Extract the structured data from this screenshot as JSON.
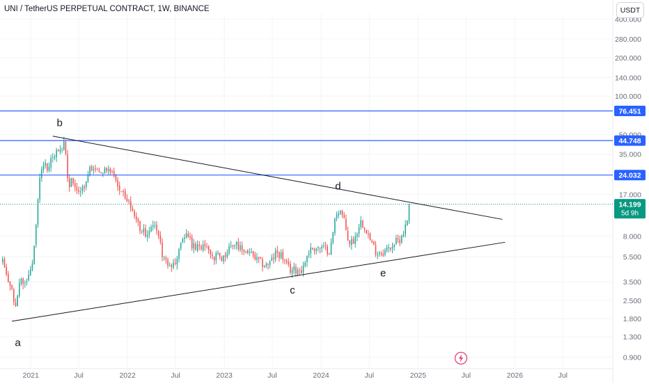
{
  "header": {
    "symbol_title": "UNI / TetherUS PERPETUAL CONTRACT, 1W, BINANCE",
    "currency_label": "USDT"
  },
  "colors": {
    "up": "#26a69a",
    "down": "#ef5350",
    "level_line": "#2962ff",
    "level_label_bg": "#2962ff",
    "price_label_bg": "#089981",
    "trendline": "#131722",
    "axis_text": "#6a6d78"
  },
  "icons": {
    "alert": "lightning-bolt-icon"
  },
  "chart_data": {
    "type": "candlestick",
    "y_scale": "log",
    "ylim": [
      0.75,
      440
    ],
    "y_ticks": [
      "0.900",
      "1.300",
      "1.800",
      "2.500",
      "3.500",
      "5.500",
      "8.000",
      "17.000",
      "35.000",
      "50.000",
      "100.000",
      "140.000",
      "200.000",
      "280.000",
      "400.000"
    ],
    "x_range": [
      "2020-09-07",
      "2026-12-31"
    ],
    "x_ticks": [
      {
        "date": "2021-01-01",
        "label": "2021"
      },
      {
        "date": "2021-07-01",
        "label": "Jul"
      },
      {
        "date": "2022-01-01",
        "label": "2022"
      },
      {
        "date": "2022-07-01",
        "label": "Jul"
      },
      {
        "date": "2023-01-01",
        "label": "2023"
      },
      {
        "date": "2023-07-01",
        "label": "Jul"
      },
      {
        "date": "2024-01-01",
        "label": "2024"
      },
      {
        "date": "2024-07-01",
        "label": "Jul"
      },
      {
        "date": "2025-01-01",
        "label": "2025"
      },
      {
        "date": "2025-07-01",
        "label": "Jul"
      },
      {
        "date": "2026-01-01",
        "label": "2026"
      },
      {
        "date": "2026-07-01",
        "label": "Jul"
      }
    ],
    "price_path": [
      [
        "2020-09-17",
        5.0
      ],
      [
        "2020-10-05",
        3.6
      ],
      [
        "2020-10-19",
        3.2
      ],
      [
        "2020-11-02",
        2.1
      ],
      [
        "2020-11-09",
        2.4
      ],
      [
        "2020-11-23",
        3.6
      ],
      [
        "2020-12-14",
        3.4
      ],
      [
        "2021-01-04",
        4.5
      ],
      [
        "2021-01-18",
        8.5
      ],
      [
        "2021-02-01",
        20
      ],
      [
        "2021-02-15",
        30
      ],
      [
        "2021-03-01",
        27
      ],
      [
        "2021-03-22",
        33
      ],
      [
        "2021-04-12",
        36
      ],
      [
        "2021-05-03",
        42
      ],
      [
        "2021-05-10",
        40
      ],
      [
        "2021-05-24",
        20
      ],
      [
        "2021-06-07",
        22
      ],
      [
        "2021-06-21",
        17
      ],
      [
        "2021-07-05",
        18
      ],
      [
        "2021-07-19",
        19
      ],
      [
        "2021-08-02",
        24
      ],
      [
        "2021-08-16",
        28
      ],
      [
        "2021-09-06",
        28
      ],
      [
        "2021-09-20",
        24
      ],
      [
        "2021-10-04",
        26
      ],
      [
        "2021-10-25",
        26
      ],
      [
        "2021-11-15",
        24
      ],
      [
        "2021-12-06",
        17
      ],
      [
        "2021-12-27",
        16
      ],
      [
        "2022-01-10",
        14
      ],
      [
        "2022-01-31",
        11
      ],
      [
        "2022-02-21",
        9
      ],
      [
        "2022-03-14",
        8.5
      ],
      [
        "2022-04-04",
        10.5
      ],
      [
        "2022-04-25",
        8.0
      ],
      [
        "2022-05-16",
        5.5
      ],
      [
        "2022-06-13",
        4.6
      ],
      [
        "2022-07-04",
        5.0
      ],
      [
        "2022-07-25",
        8.0
      ],
      [
        "2022-08-15",
        8.2
      ],
      [
        "2022-09-05",
        6.5
      ],
      [
        "2022-10-03",
        6.6
      ],
      [
        "2022-10-31",
        7.0
      ],
      [
        "2022-11-14",
        5.6
      ],
      [
        "2022-12-05",
        5.6
      ],
      [
        "2022-12-26",
        5.3
      ],
      [
        "2023-01-16",
        6.6
      ],
      [
        "2023-02-06",
        7.0
      ],
      [
        "2023-03-06",
        6.3
      ],
      [
        "2023-04-03",
        6.0
      ],
      [
        "2023-05-01",
        5.2
      ],
      [
        "2023-06-05",
        4.7
      ],
      [
        "2023-06-26",
        5.0
      ],
      [
        "2023-07-17",
        6.0
      ],
      [
        "2023-08-07",
        5.6
      ],
      [
        "2023-08-21",
        4.7
      ],
      [
        "2023-09-11",
        4.3
      ],
      [
        "2023-10-02",
        4.4
      ],
      [
        "2023-10-23",
        4.4
      ],
      [
        "2023-11-13",
        6.0
      ],
      [
        "2023-12-04",
        6.5
      ],
      [
        "2024-01-08",
        6.4
      ],
      [
        "2024-02-05",
        6.2
      ],
      [
        "2024-02-26",
        12.0
      ],
      [
        "2024-03-11",
        13.0
      ],
      [
        "2024-03-25",
        11.0
      ],
      [
        "2024-04-15",
        7.0
      ],
      [
        "2024-05-06",
        7.5
      ],
      [
        "2024-05-27",
        10.5
      ],
      [
        "2024-06-17",
        9.5
      ],
      [
        "2024-07-08",
        7.0
      ],
      [
        "2024-07-29",
        6.0
      ],
      [
        "2024-08-19",
        6.0
      ],
      [
        "2024-09-09",
        6.3
      ],
      [
        "2024-09-30",
        7.0
      ],
      [
        "2024-10-21",
        7.4
      ],
      [
        "2024-11-11",
        9.0
      ],
      [
        "2024-11-25",
        11.5
      ],
      [
        "2024-12-02",
        14.199
      ]
    ],
    "horizontal_levels": [
      {
        "value": 76.451,
        "label": "76.451"
      },
      {
        "value": 44.748,
        "label": "44.748"
      },
      {
        "value": 24.032,
        "label": "24.032"
      }
    ],
    "current_price": {
      "value": 14.199,
      "label": "14.199",
      "countdown": "5d 9h"
    },
    "trendlines": [
      {
        "name": "upper",
        "from": [
          "2021-03-25",
          48.5
        ],
        "to": [
          "2025-11-15",
          10.8
        ]
      },
      {
        "name": "lower",
        "from": [
          "2020-10-22",
          1.72
        ],
        "to": [
          "2025-11-25",
          7.15
        ]
      }
    ],
    "wave_labels": [
      {
        "label": "a",
        "date": "2020-11-13",
        "value": 1.1
      },
      {
        "label": "b",
        "date": "2021-04-20",
        "value": 58
      },
      {
        "label": "c",
        "date": "2023-09-15",
        "value": 2.83
      },
      {
        "label": "d",
        "date": "2024-03-05",
        "value": 18.5
      },
      {
        "label": "e",
        "date": "2024-08-22",
        "value": 3.85
      }
    ]
  }
}
